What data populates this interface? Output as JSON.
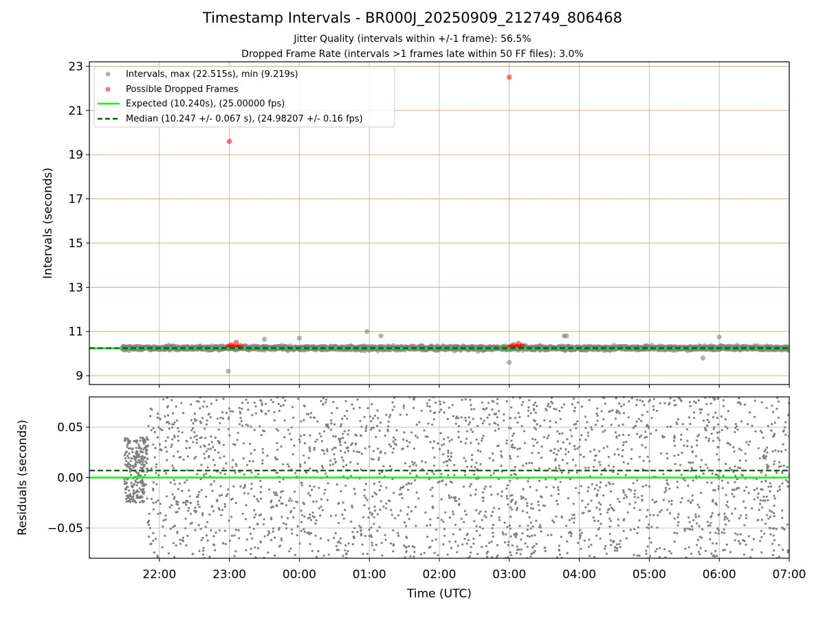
{
  "figure": {
    "title": "Timestamp Intervals - BR000J_20250909_212749_806468",
    "subtitle_1": "Jitter Quality (intervals within +/-1 frame): 56.5%",
    "subtitle_2": "Dropped Frame Rate (intervals >1 frames late within 50 FF files): 3.0%"
  },
  "colors": {
    "intervals": "#808080",
    "dropped": "#ff0000",
    "expected": "#00ff00",
    "median": "#006400",
    "hgrid": "#d4b06a",
    "vgrid": "#b0b0b0"
  },
  "chart_data": [
    {
      "type": "scatter",
      "ylabel": "Intervals (seconds)",
      "xlabel": "",
      "x_range": [
        "21:00",
        "07:00"
      ],
      "ylim": [
        8.6,
        23.2
      ],
      "y_ticks": [
        9,
        11,
        13,
        15,
        17,
        19,
        21,
        23
      ],
      "x_ticks": [
        "22:00",
        "23:00",
        "00:00",
        "01:00",
        "02:00",
        "03:00",
        "04:00",
        "05:00",
        "06:00",
        "07:00"
      ],
      "grid": true,
      "legend_position": "top-left",
      "legend": [
        "Intervals, max (22.515s), min (9.219s)",
        "Possible Dropped Frames",
        "Expected (10.240s), (25.00000 fps)",
        "Median (10.247 +/- 0.067 s), (24.98207 +/- 0.16 fps)"
      ],
      "series": [
        {
          "name": "Intervals, max (22.515s), min (9.219s)",
          "kind": "scatter",
          "time_range": [
            "21:28",
            "07:00"
          ],
          "typical_value": 10.25,
          "typical_spread": 0.12,
          "points": [
            {
              "x": "22:59",
              "y": 9.2
            },
            {
              "x": "01:10",
              "y": 10.8
            },
            {
              "x": "00:58",
              "y": 11.0
            },
            {
              "x": "03:00",
              "y": 9.6
            },
            {
              "x": "03:49",
              "y": 10.8
            },
            {
              "x": "03:47",
              "y": 10.8
            },
            {
              "x": "06:00",
              "y": 10.75
            },
            {
              "x": "05:46",
              "y": 9.8
            },
            {
              "x": "00:00",
              "y": 10.7
            },
            {
              "x": "23:30",
              "y": 10.65
            }
          ]
        },
        {
          "name": "Possible Dropped Frames",
          "kind": "scatter",
          "points": [
            {
              "x": "23:00",
              "y": 19.6
            },
            {
              "x": "03:00",
              "y": 22.5
            },
            {
              "x": "22:59",
              "y": 10.3
            },
            {
              "x": "23:00",
              "y": 10.35
            },
            {
              "x": "23:02",
              "y": 10.4
            },
            {
              "x": "23:04",
              "y": 10.3
            },
            {
              "x": "23:06",
              "y": 10.5
            },
            {
              "x": "23:07",
              "y": 10.3
            },
            {
              "x": "23:08",
              "y": 10.3
            },
            {
              "x": "23:10",
              "y": 10.35
            },
            {
              "x": "03:00",
              "y": 10.3
            },
            {
              "x": "03:02",
              "y": 10.35
            },
            {
              "x": "03:04",
              "y": 10.4
            },
            {
              "x": "03:06",
              "y": 10.3
            },
            {
              "x": "03:08",
              "y": 10.45
            },
            {
              "x": "03:09",
              "y": 10.3
            },
            {
              "x": "03:11",
              "y": 10.35
            }
          ]
        },
        {
          "name": "Expected (10.240s), (25.00000 fps)",
          "kind": "hline",
          "y": 10.24
        },
        {
          "name": "Median (10.247 +/- 0.067 s), (24.98207 +/- 0.16 fps)",
          "kind": "hline-dashed",
          "y": 10.247
        }
      ]
    },
    {
      "type": "scatter",
      "ylabel": "Residuals (seconds)",
      "xlabel": "Time (UTC)",
      "x_range": [
        "21:00",
        "07:00"
      ],
      "ylim": [
        -0.08,
        0.08
      ],
      "y_ticks": [
        {
          "value": 0.05,
          "label": "0.05"
        },
        {
          "value": 0.0,
          "label": "0.00"
        },
        {
          "value": -0.05,
          "label": "−0.05"
        }
      ],
      "x_ticks": [
        "22:00",
        "23:00",
        "00:00",
        "01:00",
        "02:00",
        "03:00",
        "04:00",
        "05:00",
        "06:00",
        "07:00"
      ],
      "grid": true,
      "series": [
        {
          "name": "",
          "kind": "scatter",
          "time_range": [
            "21:30",
            "07:00"
          ],
          "y_range": [
            -0.08,
            0.08
          ],
          "early_segment": {
            "time_range": [
              "21:30",
              "21:50"
            ],
            "y_range": [
              -0.025,
              0.04
            ]
          }
        },
        {
          "name": "",
          "kind": "hline",
          "y": 0.0
        },
        {
          "name": "",
          "kind": "hline-dashed",
          "y": 0.007
        }
      ]
    }
  ]
}
